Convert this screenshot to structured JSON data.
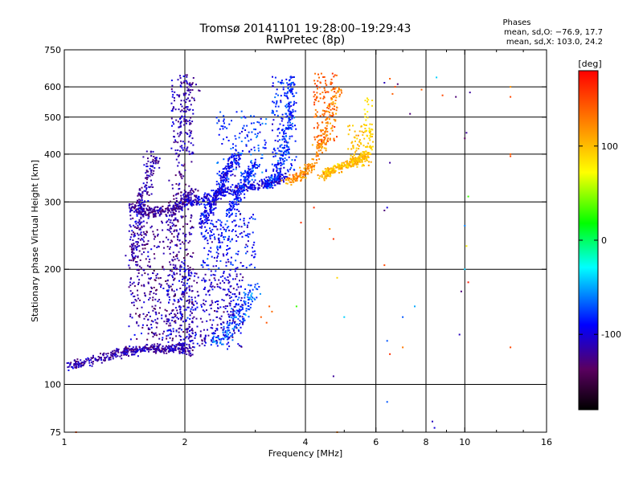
{
  "chart_data": {
    "type": "scatter",
    "title": "Tromsø 20141101 19:28:00–19:29:43",
    "subtitle": "RwPretec (8p)",
    "xlabel": "Frequency [MHz]",
    "ylabel": "Stationary phase Virtual Height [km]",
    "x_scale": "log",
    "y_scale": "log",
    "xlim": [
      1,
      16
    ],
    "ylim": [
      75,
      750
    ],
    "x_ticks": [
      1,
      2,
      4,
      6,
      8,
      10,
      16
    ],
    "x_tick_labels": [
      "1",
      "2",
      "4",
      "6",
      "8",
      "10",
      "16"
    ],
    "x_gridlines": [
      2,
      4,
      6,
      8,
      10
    ],
    "y_ticks": [
      75,
      100,
      200,
      300,
      400,
      500,
      600,
      750
    ],
    "y_tick_labels": [
      "75",
      "100",
      "200",
      "300",
      "400",
      "500",
      "600",
      "750"
    ],
    "y_gridlines": [
      100,
      200,
      300,
      400,
      500,
      600
    ],
    "grid": true,
    "colorbar": {
      "label": "[deg]",
      "range": [
        -180,
        180
      ],
      "ticks": [
        100,
        0,
        -100
      ],
      "tick_labels": [
        "100",
        "0",
        "-100"
      ],
      "placement": "right"
    },
    "phase_stats": {
      "heading": "Phases",
      "line_o": "mean, sd,O: −76.9, 17.7",
      "line_x": "mean, sd,X: 103.0, 24.2"
    },
    "traces": [
      {
        "f": [
          1.02,
          1.12,
          1.28,
          1.42,
          1.5,
          1.62,
          1.78,
          1.95,
          2.05
        ],
        "h": [
          112,
          114,
          118,
          122,
          123,
          124,
          124,
          125,
          122
        ],
        "phase": -115,
        "spread": 0.03
      },
      {
        "f": [
          1.48,
          1.58,
          1.7,
          1.86,
          2.0,
          2.1
        ],
        "h": [
          288,
          284,
          283,
          286,
          300,
          320
        ],
        "phase": -120,
        "spread": 0.035
      },
      {
        "f": [
          1.48,
          1.52,
          1.56,
          1.62,
          1.68
        ],
        "h": [
          205,
          250,
          300,
          350,
          400
        ],
        "phase": -115,
        "spread": 0.035
      },
      {
        "f": [
          1.85,
          1.92,
          2.0,
          2.05
        ],
        "h": [
          200,
          300,
          420,
          640
        ],
        "phase": -120,
        "spread": 0.045
      },
      {
        "f": [
          2.0,
          2.2,
          2.45,
          2.7,
          3.0,
          3.3,
          3.6
        ],
        "h": [
          295,
          305,
          318,
          325,
          330,
          340,
          350
        ],
        "phase": -100,
        "spread": 0.03
      },
      {
        "f": [
          2.2,
          2.3,
          2.4,
          2.5,
          2.6,
          2.7
        ],
        "h": [
          260,
          290,
          310,
          340,
          370,
          400
        ],
        "phase": -95,
        "spread": 0.03
      },
      {
        "f": [
          2.6,
          2.7,
          2.85,
          3.0
        ],
        "h": [
          280,
          310,
          350,
          380
        ],
        "phase": -85,
        "spread": 0.03
      },
      {
        "f": [
          3.2,
          3.4,
          3.55,
          3.65,
          3.7
        ],
        "h": [
          330,
          350,
          420,
          520,
          640
        ],
        "phase": -80,
        "spread": 0.025
      },
      {
        "f": [
          3.6,
          3.9,
          4.2,
          4.5,
          4.8
        ],
        "h": [
          340,
          350,
          380,
          450,
          600
        ],
        "phase": 120,
        "spread": 0.03
      },
      {
        "f": [
          4.4,
          4.6,
          4.9,
          5.2,
          5.5,
          5.7
        ],
        "h": [
          350,
          360,
          370,
          380,
          390,
          400
        ],
        "phase": 100,
        "spread": 0.025
      },
      {
        "f": [
          2.4,
          2.6,
          2.8,
          3.0
        ],
        "h": [
          130,
          140,
          160,
          180
        ],
        "phase": -70,
        "spread": 0.05
      }
    ],
    "clouds": [
      {
        "f": [
          1.45,
          2.1
        ],
        "h": [
          130,
          280
        ],
        "n": 420,
        "phase": -120,
        "spread": 25
      },
      {
        "f": [
          1.8,
          2.8
        ],
        "h": [
          125,
          200
        ],
        "n": 420,
        "phase": -105,
        "spread": 25
      },
      {
        "f": [
          1.85,
          2.1
        ],
        "h": [
          400,
          650
        ],
        "n": 110,
        "phase": -110,
        "spread": 20
      },
      {
        "f": [
          2.2,
          3.0
        ],
        "h": [
          200,
          280
        ],
        "n": 200,
        "phase": -90,
        "spread": 25
      },
      {
        "f": [
          2.4,
          3.2
        ],
        "h": [
          350,
          520
        ],
        "n": 130,
        "phase": -80,
        "spread": 25
      },
      {
        "f": [
          3.3,
          3.8
        ],
        "h": [
          360,
          640
        ],
        "n": 140,
        "phase": -85,
        "spread": 20
      },
      {
        "f": [
          4.2,
          4.8
        ],
        "h": [
          420,
          650
        ],
        "n": 130,
        "phase": 140,
        "spread": 20
      },
      {
        "f": [
          5.1,
          5.9
        ],
        "h": [
          370,
          480
        ],
        "n": 90,
        "phase": 100,
        "spread": 15
      },
      {
        "f": [
          5.6,
          5.9
        ],
        "h": [
          400,
          560
        ],
        "n": 40,
        "phase": 85,
        "spread": 10
      }
    ],
    "isolated_points": [
      {
        "f": 3.1,
        "h": 150,
        "phase": 140
      },
      {
        "f": 3.2,
        "h": 145,
        "phase": 145
      },
      {
        "f": 3.3,
        "h": 155,
        "phase": 135
      },
      {
        "f": 3.25,
        "h": 160,
        "phase": 140
      },
      {
        "f": 3.8,
        "h": 160,
        "phase": 30
      },
      {
        "f": 3.9,
        "h": 265,
        "phase": 160
      },
      {
        "f": 4.2,
        "h": 290,
        "phase": 160
      },
      {
        "f": 4.6,
        "h": 255,
        "phase": 120
      },
      {
        "f": 4.7,
        "h": 240,
        "phase": 160
      },
      {
        "f": 4.8,
        "h": 190,
        "phase": 90
      },
      {
        "f": 4.8,
        "h": 75,
        "phase": 130
      },
      {
        "f": 4.7,
        "h": 105,
        "phase": -120
      },
      {
        "f": 5.0,
        "h": 150,
        "phase": -40
      },
      {
        "f": 6.3,
        "h": 285,
        "phase": -130
      },
      {
        "f": 6.4,
        "h": 290,
        "phase": -100
      },
      {
        "f": 6.3,
        "h": 205,
        "phase": 150
      },
      {
        "f": 6.4,
        "h": 130,
        "phase": -70
      },
      {
        "f": 6.5,
        "h": 120,
        "phase": 160
      },
      {
        "f": 6.4,
        "h": 90,
        "phase": -70
      },
      {
        "f": 6.5,
        "h": 380,
        "phase": -120
      },
      {
        "f": 6.6,
        "h": 575,
        "phase": 140
      },
      {
        "f": 6.7,
        "h": 600,
        "phase": 150
      },
      {
        "f": 6.3,
        "h": 615,
        "phase": -110
      },
      {
        "f": 6.5,
        "h": 630,
        "phase": 140
      },
      {
        "f": 6.8,
        "h": 610,
        "phase": -130
      },
      {
        "f": 7.0,
        "h": 125,
        "phase": 130
      },
      {
        "f": 7.0,
        "h": 150,
        "phase": -70
      },
      {
        "f": 7.5,
        "h": 160,
        "phase": -50
      },
      {
        "f": 7.3,
        "h": 510,
        "phase": -130
      },
      {
        "f": 7.8,
        "h": 590,
        "phase": 140
      },
      {
        "f": 8.3,
        "h": 80,
        "phase": -110
      },
      {
        "f": 8.4,
        "h": 77,
        "phase": -100
      },
      {
        "f": 8.5,
        "h": 635,
        "phase": -40
      },
      {
        "f": 8.8,
        "h": 570,
        "phase": 150
      },
      {
        "f": 9.5,
        "h": 565,
        "phase": -130
      },
      {
        "f": 9.7,
        "h": 135,
        "phase": -110
      },
      {
        "f": 9.8,
        "h": 175,
        "phase": -130
      },
      {
        "f": 10.0,
        "h": 200,
        "phase": -40
      },
      {
        "f": 10.0,
        "h": 260,
        "phase": -60
      },
      {
        "f": 10.1,
        "h": 230,
        "phase": 80
      },
      {
        "f": 10.2,
        "h": 185,
        "phase": 170
      },
      {
        "f": 10.0,
        "h": 440,
        "phase": -140
      },
      {
        "f": 10.1,
        "h": 455,
        "phase": -120
      },
      {
        "f": 10.2,
        "h": 310,
        "phase": 30
      },
      {
        "f": 10.3,
        "h": 580,
        "phase": -120
      },
      {
        "f": 13.0,
        "h": 400,
        "phase": 140
      },
      {
        "f": 13.0,
        "h": 395,
        "phase": 150
      },
      {
        "f": 13.0,
        "h": 565,
        "phase": 150
      },
      {
        "f": 13.0,
        "h": 600,
        "phase": 120
      },
      {
        "f": 13.0,
        "h": 125,
        "phase": 150
      },
      {
        "f": 1.07,
        "h": 75,
        "phase": 150
      }
    ]
  }
}
